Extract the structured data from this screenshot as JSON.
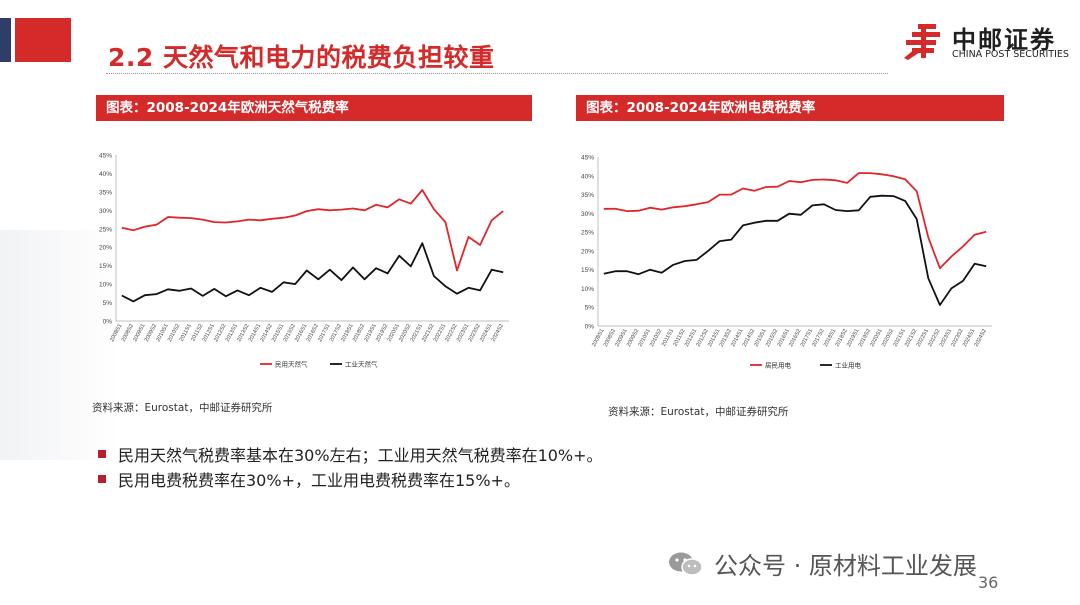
{
  "slide": {
    "title": "2.2 天然气和电力的税费负担较重",
    "page_number": "36",
    "accent_color": "#d42a2a"
  },
  "logo": {
    "name_cn": "中邮证券",
    "name_en": "CHINA POST SECURITIES"
  },
  "panels": [
    {
      "header": "图表：2008-2024年欧洲天然气税费率",
      "source": "资料来源：Eurostat，中邮证券研究所"
    },
    {
      "header": "图表：2008-2024年欧洲电费税费率",
      "source": "资料来源：Eurostat，中邮证券研究所"
    }
  ],
  "bullets": [
    "民用天然气税费率基本在30%左右；工业用天然气税费率在10%+。",
    "民用电费税费率在30%+，工业用电费税费率在15%+。"
  ],
  "watermark": "公众号 · 原材料工业发展",
  "chart_data": [
    {
      "type": "line",
      "title": "2008-2024年欧洲天然气税费率",
      "yticks": [
        "0%",
        "5%",
        "10%",
        "15%",
        "20%",
        "25%",
        "30%",
        "35%",
        "40%",
        "45%"
      ],
      "ylim": [
        0,
        45
      ],
      "categories": [
        "2008S1",
        "2008S2",
        "2009S1",
        "2009S2",
        "2010S1",
        "2010S2",
        "2011S1",
        "2011S2",
        "2012S1",
        "2012S2",
        "2013S1",
        "2013S2",
        "2014S1",
        "2014S2",
        "2015S1",
        "2015S2",
        "2016S1",
        "2016S2",
        "2017S1",
        "2017S2",
        "2018S1",
        "2018S2",
        "2019S1",
        "2019S2",
        "2020S1",
        "2020S2",
        "2021S1",
        "2021S2",
        "2022S1",
        "2022S2",
        "2023S1",
        "2023S2",
        "2024S1",
        "2024S2"
      ],
      "xticks": [
        "2008S1",
        "2008S2",
        "2009S1",
        "2009S2",
        "2010S1",
        "2010S2",
        "2011S1",
        "2011S2",
        "2012S1",
        "2012S2",
        "2013S1",
        "2013S2",
        "2014S1",
        "2014S2",
        "2015S1",
        "2015S2",
        "2016S1",
        "2016S2",
        "2017S1",
        "2017S2",
        "2018S1",
        "2018S2",
        "2019S1",
        "2019S2",
        "2020S1",
        "2020S2",
        "2021S1",
        "2021S2",
        "2022S1",
        "2022S2",
        "2023S1",
        "2023S2",
        "2024S1",
        "2024S2"
      ],
      "series": [
        {
          "name": "民用天然气",
          "color": "#e0262b",
          "values": [
            25.3,
            24.6,
            25.6,
            26.1,
            28.2,
            28.0,
            27.9,
            27.5,
            26.8,
            26.7,
            27.0,
            27.5,
            27.3,
            27.7,
            28.0,
            28.6,
            29.8,
            30.3,
            30.0,
            30.2,
            30.5,
            30.0,
            31.5,
            30.8,
            33.0,
            31.8,
            35.5,
            30.3,
            26.8,
            13.7,
            22.8,
            20.6,
            27.3,
            29.8
          ]
        },
        {
          "name": "工业天然气",
          "color": "#111111",
          "values": [
            6.9,
            5.3,
            7.0,
            7.3,
            8.6,
            8.2,
            8.8,
            6.8,
            8.7,
            6.7,
            8.3,
            7.0,
            9.0,
            7.9,
            10.5,
            10.0,
            13.7,
            11.3,
            13.9,
            11.1,
            14.5,
            11.3,
            14.3,
            12.9,
            17.7,
            14.8,
            21.1,
            12.2,
            9.4,
            7.4,
            9.0,
            8.3,
            13.9,
            13.2
          ]
        }
      ]
    },
    {
      "type": "line",
      "title": "2008-2024年欧洲电费税费率",
      "yticks": [
        "0%",
        "5%",
        "10%",
        "15%",
        "20%",
        "25%",
        "30%",
        "35%",
        "40%",
        "45%"
      ],
      "ylim": [
        0,
        45
      ],
      "categories": [
        "2008S1",
        "2008S2",
        "2009S1",
        "2009S2",
        "2010S1",
        "2010S2",
        "2011S1",
        "2011S2",
        "2012S1",
        "2012S2",
        "2013S1",
        "2013S2",
        "2014S1",
        "2014S2",
        "2015S1",
        "2015S2",
        "2016S1",
        "2016S2",
        "2017S1",
        "2017S2",
        "2018S1",
        "2018S2",
        "2019S1",
        "2019S2",
        "2020S1",
        "2020S2",
        "2021S1",
        "2021S2",
        "2022S1",
        "2022S2",
        "2023S1",
        "2023S2",
        "2024S1",
        "2024S2"
      ],
      "xticks": [
        "2008S1",
        "2008S2",
        "2009S1",
        "2009S2",
        "2010S1",
        "2010S2",
        "2011S1",
        "2011S2",
        "2012S1",
        "2012S2",
        "2013S1",
        "2013S2",
        "2014S1",
        "2014S2",
        "2015S1",
        "2015S2",
        "2016S1",
        "2016S2",
        "2017S1",
        "2017S2",
        "2018S1",
        "2018S2",
        "2019S1",
        "2019S2",
        "2020S1",
        "2020S2",
        "2021S1",
        "2021S2",
        "2022S1",
        "2022S2",
        "2023S1",
        "2023S2",
        "2024S1",
        "2024S2"
      ],
      "series": [
        {
          "name": "居民用电",
          "color": "#e0262b",
          "values": [
            31.2,
            31.2,
            30.6,
            30.7,
            31.5,
            31.0,
            31.6,
            31.9,
            32.4,
            33.0,
            35.0,
            35.0,
            36.6,
            36.0,
            37.0,
            37.1,
            38.6,
            38.3,
            38.9,
            39.0,
            38.8,
            38.1,
            40.7,
            40.7,
            40.4,
            39.9,
            39.1,
            35.9,
            23.6,
            15.4,
            18.5,
            21.2,
            24.3,
            25.1
          ]
        },
        {
          "name": "工业用电",
          "color": "#111111",
          "values": [
            13.9,
            14.6,
            14.6,
            13.8,
            15.0,
            14.2,
            16.3,
            17.3,
            17.6,
            20.0,
            22.6,
            23.0,
            26.8,
            27.5,
            28.0,
            28.0,
            29.9,
            29.6,
            32.1,
            32.4,
            30.9,
            30.6,
            30.8,
            34.4,
            34.7,
            34.6,
            33.3,
            28.5,
            12.7,
            5.6,
            10.0,
            12.0,
            16.6,
            15.9
          ]
        }
      ]
    }
  ]
}
